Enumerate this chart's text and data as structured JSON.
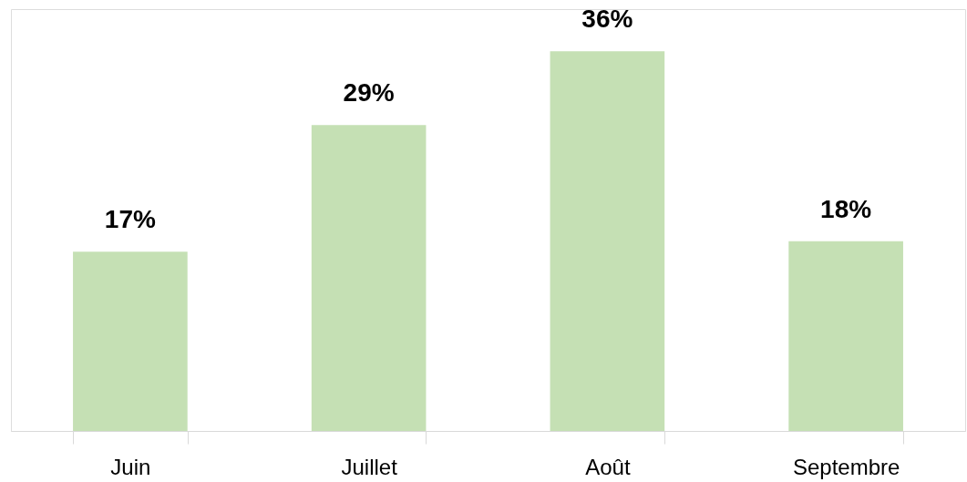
{
  "chart_data": {
    "type": "bar",
    "categories": [
      "Juin",
      "Juillet",
      "Août",
      "Septembre"
    ],
    "values": [
      17,
      29,
      36,
      18
    ],
    "value_labels": [
      "17%",
      "29%",
      "36%",
      "18%"
    ],
    "color": "#c5e0b4"
  }
}
